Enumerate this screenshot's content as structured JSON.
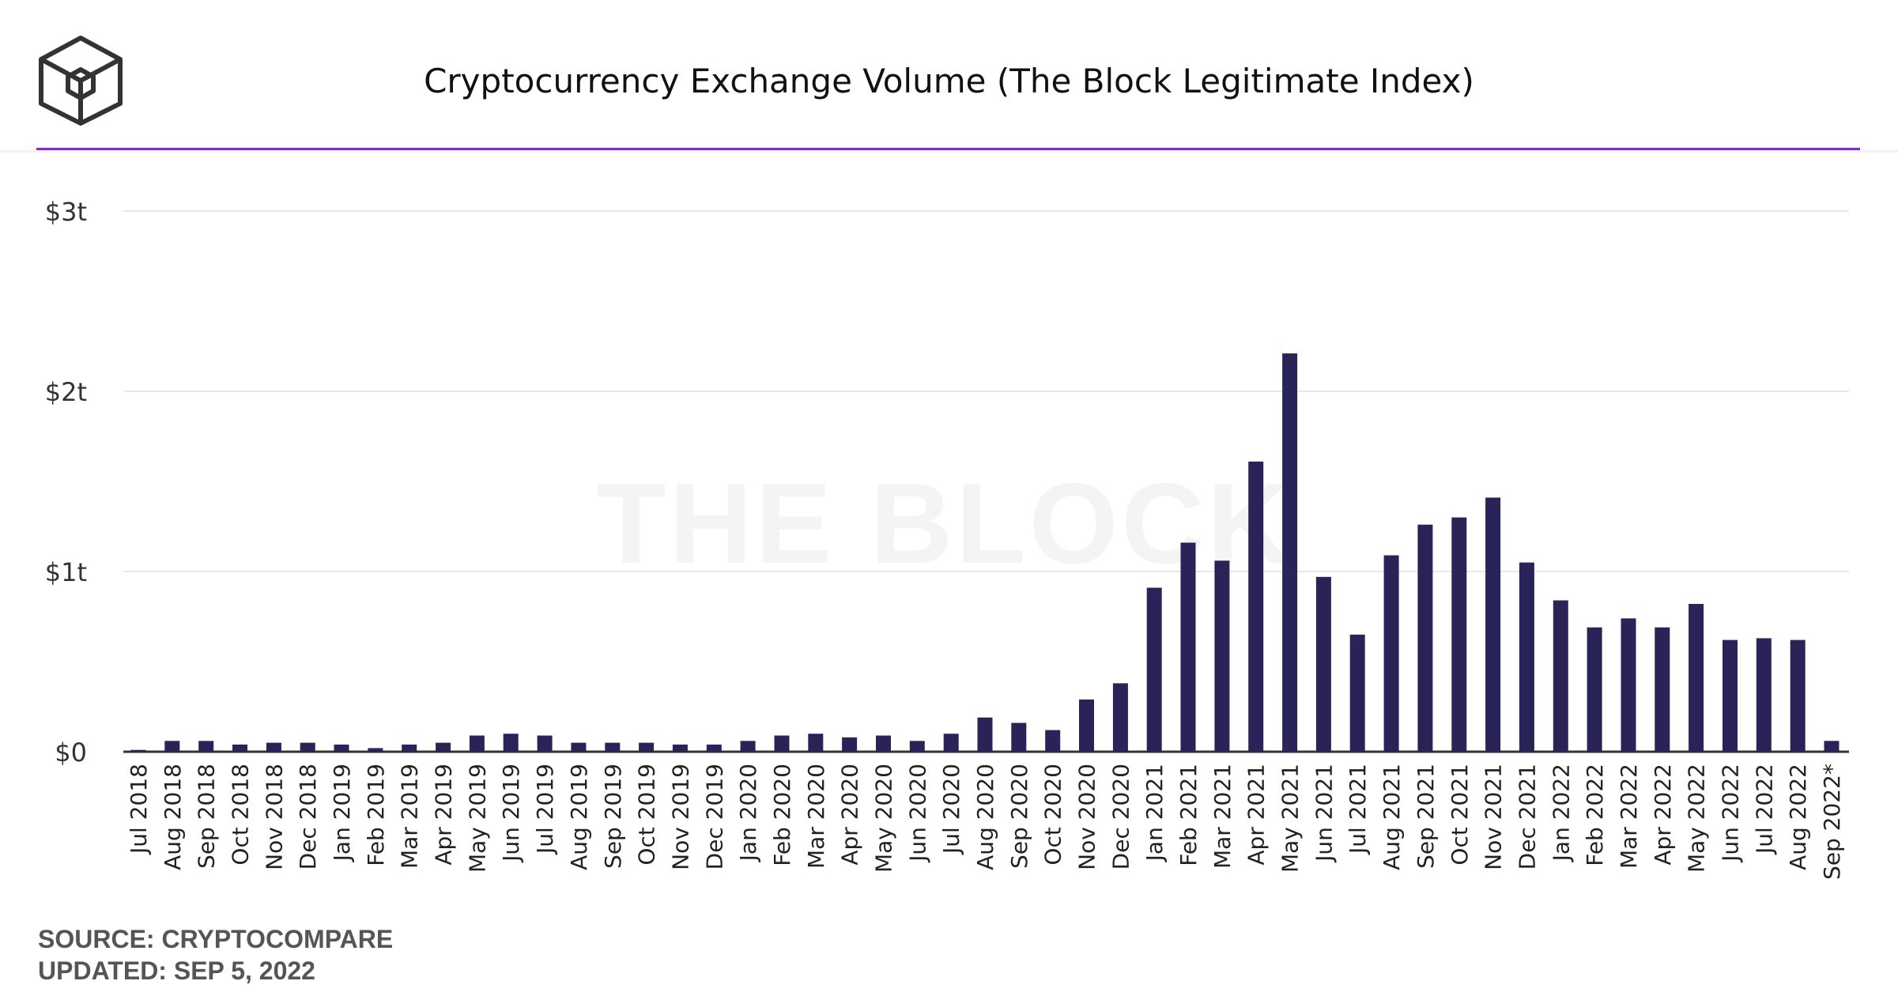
{
  "header": {
    "title": "Cryptocurrency Exchange Volume (The Block Legitimate Index)",
    "logo_icon": "the-block-cube-logo-icon"
  },
  "watermark": "THE BLOCK",
  "footer": {
    "source": "SOURCE: CRYPTOCOMPARE",
    "updated": "UPDATED: SEP 5, 2022"
  },
  "colors": {
    "bar": "#2a2357",
    "accent": "#8b24d6",
    "grid": "#e8e8e8"
  },
  "chart_data": {
    "type": "bar",
    "title": "Cryptocurrency Exchange Volume (The Block Legitimate Index)",
    "xlabel": "",
    "ylabel": "",
    "unit": "trillion USD",
    "ylim": [
      0,
      3
    ],
    "yticks": [
      {
        "value": 0,
        "label": "$0"
      },
      {
        "value": 1,
        "label": "$1t"
      },
      {
        "value": 2,
        "label": "$2t"
      },
      {
        "value": 3,
        "label": "$3t"
      }
    ],
    "grid": true,
    "legend": "none",
    "categories": [
      "Jul 2018",
      "Aug 2018",
      "Sep 2018",
      "Oct 2018",
      "Nov 2018",
      "Dec 2018",
      "Jan 2019",
      "Feb 2019",
      "Mar 2019",
      "Apr 2019",
      "May 2019",
      "Jun 2019",
      "Jul 2019",
      "Aug 2019",
      "Sep 2019",
      "Oct 2019",
      "Nov 2019",
      "Dec 2019",
      "Jan 2020",
      "Feb 2020",
      "Mar 2020",
      "Apr 2020",
      "May 2020",
      "Jun 2020",
      "Jul 2020",
      "Aug 2020",
      "Sep 2020",
      "Oct 2020",
      "Nov 2020",
      "Dec 2020",
      "Jan 2021",
      "Feb 2021",
      "Mar 2021",
      "Apr 2021",
      "May 2021",
      "Jun 2021",
      "Jul 2021",
      "Aug 2021",
      "Sep 2021",
      "Oct 2021",
      "Nov 2021",
      "Dec 2021",
      "Jan 2022",
      "Feb 2022",
      "Mar 2022",
      "Apr 2022",
      "May 2022",
      "Jun 2022",
      "Jul 2022",
      "Aug 2022",
      "Sep 2022*"
    ],
    "values": [
      0.01,
      0.06,
      0.06,
      0.04,
      0.05,
      0.05,
      0.04,
      0.02,
      0.04,
      0.05,
      0.09,
      0.1,
      0.09,
      0.05,
      0.05,
      0.05,
      0.04,
      0.04,
      0.06,
      0.09,
      0.1,
      0.08,
      0.09,
      0.06,
      0.1,
      0.19,
      0.16,
      0.12,
      0.29,
      0.38,
      0.91,
      1.16,
      1.06,
      1.61,
      2.21,
      0.97,
      0.65,
      1.09,
      1.26,
      1.3,
      1.41,
      1.05,
      0.84,
      0.69,
      0.74,
      0.69,
      0.82,
      0.62,
      0.63,
      0.62,
      0.06
    ]
  }
}
